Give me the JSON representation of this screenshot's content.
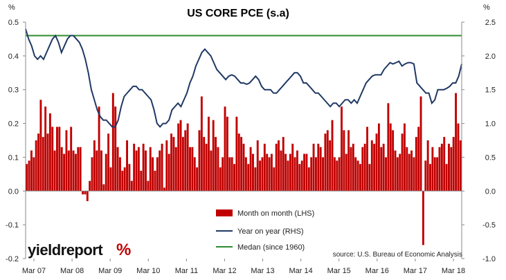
{
  "chart_data": {
    "type": "bar",
    "title": "US CORE PCE (s.a)",
    "left_unit": "%",
    "right_unit": "%",
    "ylim_left": [
      -0.2,
      0.5
    ],
    "ylim_right": [
      -1.0,
      2.5
    ],
    "left_ticks": [
      "-0.2",
      "-0.1",
      "0.0",
      "0.1",
      "0.2",
      "0.3",
      "0.4",
      "0.5"
    ],
    "right_ticks": [
      "-1.0",
      "-0.5",
      "0.0",
      "0.5",
      "1.0",
      "1.5",
      "2.0",
      "2.5"
    ],
    "x_ticks": [
      "Mar 07",
      "Mar 08",
      "Mar 09",
      "Mar 10",
      "Mar 11",
      "Mar 12",
      "Mar 13",
      "Mar 14",
      "Mar 15",
      "Mar 16",
      "Mar 17",
      "Mar 18"
    ],
    "grid": false,
    "legend_position": "bottom-center",
    "source": "source: U.S. Bureau of Economic Analysis",
    "colors": {
      "mom": "#c00000",
      "yoy": "#1f3864",
      "median": "#2e8b2e"
    },
    "series": [
      {
        "name": "Month on month (LHS)",
        "type": "bar",
        "axis": "left",
        "values": [
          0.08,
          0.09,
          0.12,
          0.1,
          0.15,
          0.17,
          0.27,
          0.16,
          0.25,
          0.17,
          0.23,
          0.19,
          0.12,
          0.19,
          0.19,
          0.13,
          0.11,
          0.18,
          0.12,
          0.19,
          0.12,
          0.11,
          0.13,
          0.13,
          -0.01,
          -0.01,
          -0.03,
          0.03,
          0.1,
          0.15,
          0.12,
          0.25,
          0.12,
          0.02,
          0.11,
          0.17,
          0.07,
          0.29,
          0.25,
          0.13,
          0.1,
          0.06,
          0.07,
          0.15,
          0.08,
          0.03,
          0.14,
          0.12,
          0.13,
          0.06,
          0.14,
          0.12,
          0.03,
          0.13,
          0.1,
          0.06,
          0.1,
          0.12,
          0.14,
          0.01,
          0.15,
          0.11,
          0.17,
          0.16,
          0.13,
          0.2,
          0.21,
          0.16,
          0.18,
          0.2,
          0.13,
          0.13,
          0.1,
          0.07,
          0.18,
          0.28,
          0.16,
          0.14,
          0.22,
          0.12,
          0.21,
          0.16,
          0.13,
          0.07,
          0.1,
          0.25,
          0.22,
          0.1,
          0.1,
          0.08,
          0.22,
          0.17,
          0.16,
          0.14,
          0.1,
          0.08,
          0.13,
          0.11,
          0.07,
          0.15,
          0.09,
          0.1,
          0.14,
          0.11,
          0.1,
          0.11,
          0.07,
          0.14,
          0.15,
          0.12,
          0.16,
          0.11,
          0.09,
          0.11,
          0.14,
          0.1,
          0.12,
          0.08,
          0.09,
          0.11,
          0.11,
          0.07,
          0.1,
          0.14,
          0.1,
          0.14,
          0.13,
          0.1,
          0.17,
          0.18,
          0.15,
          0.21,
          0.1,
          0.09,
          0.1,
          0.25,
          0.18,
          0.11,
          0.18,
          0.13,
          0.14,
          0.1,
          0.09,
          0.08,
          0.13,
          0.14,
          0.19,
          0.08,
          0.15,
          0.14,
          0.17,
          0.2,
          0.13,
          0.14,
          0.1,
          0.26,
          0.2,
          0.18,
          0.12,
          0.1,
          0.11,
          0.17,
          0.2,
          0.13,
          0.11,
          0.12,
          0.1,
          0.16,
          0.19,
          0.28,
          -0.16,
          0.09,
          0.15,
          0.08,
          0.13,
          0.1,
          0.1,
          0.13,
          0.14,
          0.16,
          0.08,
          0.14,
          0.13,
          0.16,
          0.29,
          0.2,
          0.15
        ]
      },
      {
        "name": "Year on year (RHS)",
        "type": "line",
        "axis": "right",
        "values": [
          2.4,
          2.25,
          2.15,
          2.0,
          1.95,
          2.0,
          1.95,
          2.05,
          2.15,
          2.25,
          2.3,
          2.2,
          2.05,
          2.15,
          2.25,
          2.3,
          2.3,
          2.25,
          2.2,
          2.1,
          1.95,
          1.75,
          1.5,
          1.35,
          1.2,
          1.1,
          1.05,
          1.05,
          1.0,
          0.95,
          0.95,
          1.05,
          1.25,
          1.4,
          1.45,
          1.5,
          1.55,
          1.55,
          1.5,
          1.5,
          1.45,
          1.4,
          1.35,
          1.2,
          1.0,
          0.95,
          1.0,
          1.0,
          1.05,
          1.2,
          1.25,
          1.3,
          1.25,
          1.35,
          1.45,
          1.6,
          1.7,
          1.85,
          1.95,
          2.05,
          2.1,
          2.05,
          2.0,
          1.9,
          1.8,
          1.75,
          1.7,
          1.65,
          1.7,
          1.72,
          1.7,
          1.65,
          1.6,
          1.6,
          1.58,
          1.6,
          1.65,
          1.7,
          1.65,
          1.55,
          1.5,
          1.5,
          1.5,
          1.45,
          1.45,
          1.5,
          1.55,
          1.6,
          1.65,
          1.7,
          1.75,
          1.75,
          1.7,
          1.6,
          1.6,
          1.55,
          1.5,
          1.45,
          1.45,
          1.4,
          1.35,
          1.3,
          1.25,
          1.3,
          1.3,
          1.25,
          1.3,
          1.35,
          1.35,
          1.3,
          1.35,
          1.3,
          1.4,
          1.5,
          1.6,
          1.65,
          1.7,
          1.72,
          1.72,
          1.72,
          1.8,
          1.85,
          1.9,
          1.88,
          1.9,
          1.92,
          1.85,
          1.88,
          1.9,
          1.9,
          1.88,
          1.6,
          1.55,
          1.5,
          1.45,
          1.45,
          1.3,
          1.35,
          1.5,
          1.5,
          1.5,
          1.52,
          1.55,
          1.6,
          1.6,
          1.7,
          1.88
        ]
      },
      {
        "name": "Medan (since 1960)",
        "type": "line",
        "axis": "right",
        "values": [
          2.3,
          2.3
        ]
      }
    ]
  },
  "logo": {
    "text": "yieldreport",
    "symbol": "%"
  }
}
